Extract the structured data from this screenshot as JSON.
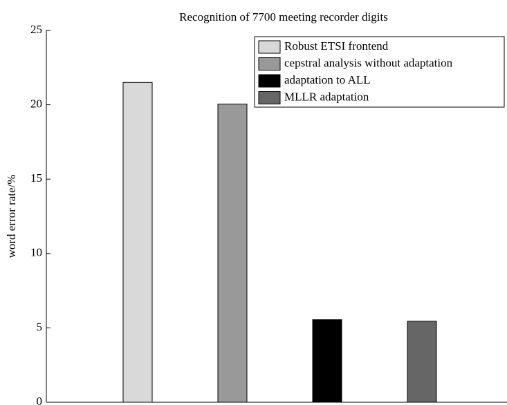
{
  "chart_data": {
    "type": "bar",
    "title": "Recognition of 7700 meeting recorder digits",
    "y_label": "word error rate/%",
    "categories": [
      null
    ],
    "series": [
      {
        "name": "Robust ETSI frontend",
        "color": "#d9d9d9",
        "values": [
          21.5
        ]
      },
      {
        "name": "cepstral analysis without adaptation",
        "color": "#999999",
        "values": [
          20.05
        ]
      },
      {
        "name": "adaptation to ALL",
        "color": "#000000",
        "values": [
          5.55
        ]
      },
      {
        "name": "MLLR adaptation",
        "color": "#666666",
        "values": [
          5.45
        ]
      }
    ],
    "ylim": [
      0,
      25
    ],
    "yticks": [
      0,
      5,
      10,
      15,
      20,
      25
    ],
    "grid": false,
    "legend": "upper right"
  }
}
